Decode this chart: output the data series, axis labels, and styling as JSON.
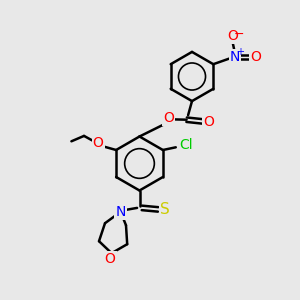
{
  "background_color": "#e8e8e8",
  "bond_color": "#000000",
  "atom_colors": {
    "O": "#ff0000",
    "N": "#0000ff",
    "S": "#cccc00",
    "Cl": "#00cc00",
    "C": "#000000"
  },
  "figsize": [
    3.0,
    3.0
  ],
  "dpi": 100
}
